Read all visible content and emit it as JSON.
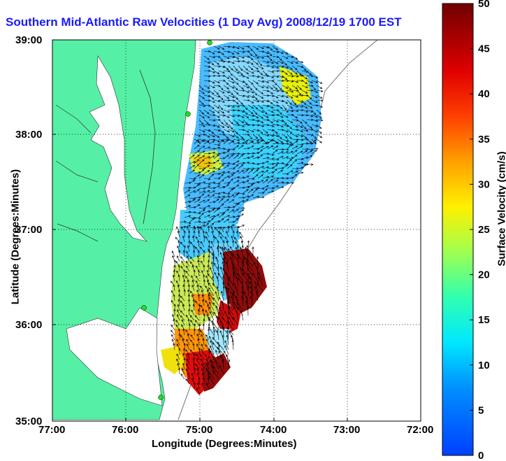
{
  "title": "Southern Mid-Atlantic Raw Velocities (1 Day Avg) 2008/12/19 1700 EST",
  "xlabel": "Longitude (Degrees:Minutes)",
  "ylabel": "Latitude (Degrees:Minutes)",
  "colorbar": {
    "label": "Surface Velocity (cm/s)",
    "ticks": [
      "0",
      "5",
      "10",
      "15",
      "20",
      "25",
      "30",
      "35",
      "40",
      "45",
      "50"
    ],
    "range": [
      0,
      50
    ]
  },
  "axes": {
    "x_ticks": [
      "77:00",
      "76:00",
      "75:00",
      "74:00",
      "73:00",
      "72:00"
    ],
    "y_ticks": [
      "39:00",
      "38:00",
      "37:00",
      "36:00",
      "35:00"
    ],
    "grid": "dotted"
  },
  "colors": {
    "land": "#55f0a5",
    "title": "#1a1aff",
    "station": "#22dd22",
    "arrows": "#000000"
  },
  "stations": [
    "station-1",
    "station-2",
    "station-3",
    "station-4"
  ]
}
